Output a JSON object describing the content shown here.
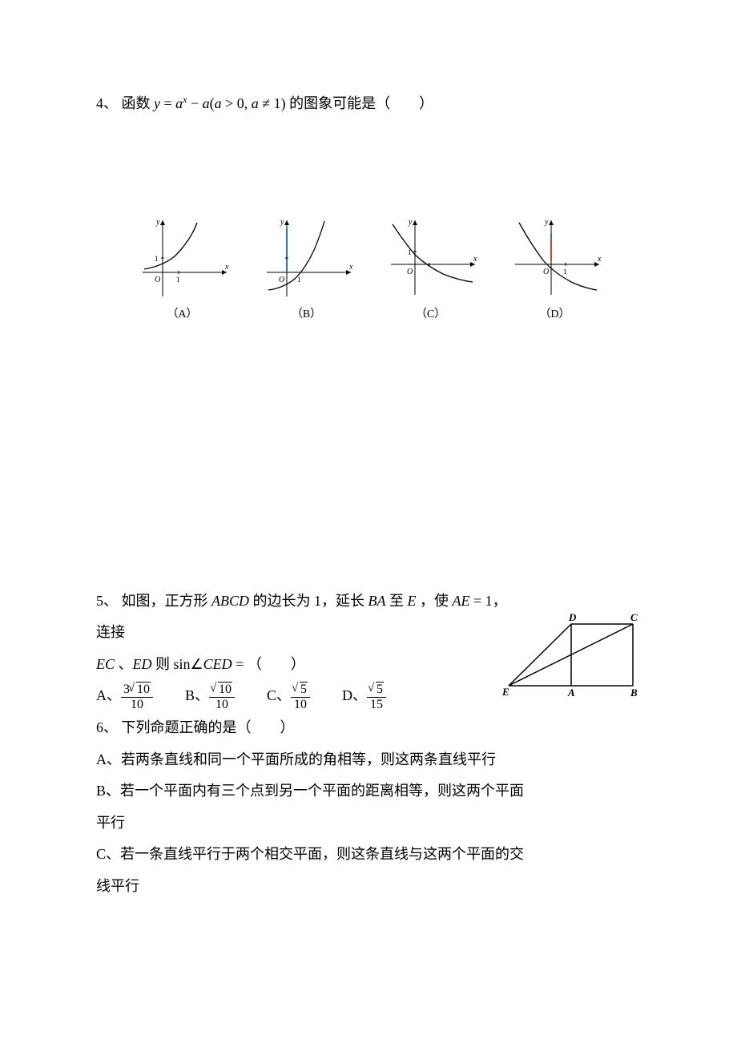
{
  "q4": {
    "number": "4、",
    "text_pre": "函数",
    "formula_html": "<span class='math-italic'>y</span> = <span class='math-italic'>a</span><span class='sup math-italic'>x</span> − <span class='math-italic'>a</span>(<span class='math-italic'>a</span> &gt; 0, <span class='math-italic'>a</span> ≠ 1)",
    "text_post": "的图象可能是（　　）",
    "graphs": {
      "A": {
        "label": "（A）"
      },
      "B": {
        "label": "（B）"
      },
      "C": {
        "label": "（C）"
      },
      "D": {
        "label": "（D）"
      }
    }
  },
  "q5": {
    "number": "5、",
    "text_line1_html": "如图，正方形 <span class='math-italic'>ABCD</span> 的边长为 1，延长 <span class='math-italic'>BA</span> 至 <span class='math-italic'>E</span> ，使 <span class='math-italic'>AE</span> = 1，连接",
    "text_line2_html": "<span class='math-italic'>EC</span> 、<span class='math-italic'>ED</span> 则 sin∠<span class='math-italic'>CED</span> = （　　）",
    "choices": {
      "A": {
        "num_coeff": "3",
        "num_rad": "10",
        "den": "10"
      },
      "B": {
        "num_coeff": "",
        "num_rad": "10",
        "den": "10"
      },
      "C": {
        "num_coeff": "",
        "num_rad": "5",
        "den": "10"
      },
      "D": {
        "num_coeff": "",
        "num_rad": "5",
        "den": "15"
      }
    },
    "figure_labels": {
      "D": "D",
      "C": "C",
      "E": "E",
      "A": "A",
      "B": "B"
    }
  },
  "q6": {
    "number": "6、",
    "stem": "下列命题正确的是（　　）",
    "A": "A、若两条直线和同一个平面所成的角相等，则这两条直线平行",
    "B1": "B、若一个平面内有三个点到另一个平面的距离相等，则这两个平面",
    "B2": "平行",
    "C1": "C、若一条直线平行于两个相交平面，则这条直线与这两个平面的交",
    "C2": "线平行"
  },
  "style": {
    "axis_color": "#000000",
    "curve_color": "#000000",
    "tick_color": "#000000",
    "figure_stroke": "#000000",
    "font_main": 18,
    "font_graph_label": 14
  }
}
